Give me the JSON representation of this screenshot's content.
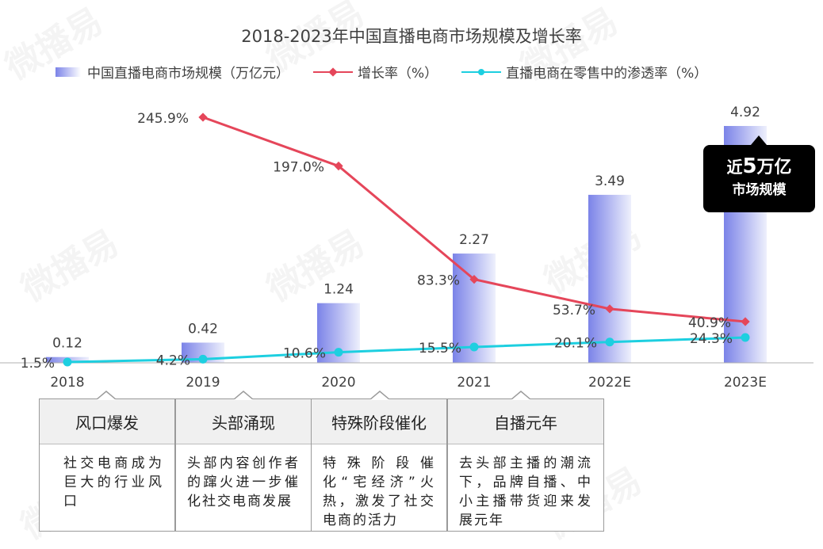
{
  "watermark": "微播易",
  "chart_data": {
    "type": "bar",
    "title": "2018-2023年中国直播电商市场规模及增长率",
    "categories": [
      "2018",
      "2019",
      "2020",
      "2021",
      "2022E",
      "2023E"
    ],
    "series": [
      {
        "name": "中国直播电商市场规模（万亿元）",
        "type": "bar",
        "values": [
          0.12,
          0.42,
          1.24,
          2.27,
          3.49,
          4.92
        ],
        "labels": [
          "0.12",
          "0.42",
          "1.24",
          "2.27",
          "3.49",
          "4.92"
        ],
        "color": "#7b83e8"
      },
      {
        "name": "增长率（%）",
        "type": "line",
        "values": [
          null,
          245.9,
          197.0,
          83.3,
          53.7,
          40.9
        ],
        "labels": [
          "",
          "245.9%",
          "197.0%",
          "83.3%",
          "53.7%",
          "40.9%"
        ],
        "color": "#e5465a"
      },
      {
        "name": "直播电商在零售中的渗透率（%）",
        "type": "line",
        "values": [
          1.5,
          4.2,
          10.6,
          15.5,
          20.1,
          24.3
        ],
        "labels": [
          "1.5%",
          "4.2%",
          "10.6%",
          "15.5%",
          "20.1%",
          "24.3%"
        ],
        "color": "#1dcfe0"
      }
    ],
    "legend": "top",
    "grid": false
  },
  "callout": {
    "line1_prefix": "近",
    "line1_num": "5",
    "line1_suffix": "万亿",
    "line2": "市场规模"
  },
  "cards": [
    {
      "title": "风口爆发",
      "text": "社交电商成为巨大的行业风口"
    },
    {
      "title": "头部涌现",
      "text": "头部内容创作者的蹿火进一步催化社交电商发展"
    },
    {
      "title": "特殊阶段催化",
      "text": "特殊阶段催化“宅经济”火热，激发了社交电商的活力"
    },
    {
      "title": "自播元年",
      "text": "去头部主播的潮流下，品牌自播、中小主播带货迎来发展元年"
    }
  ]
}
